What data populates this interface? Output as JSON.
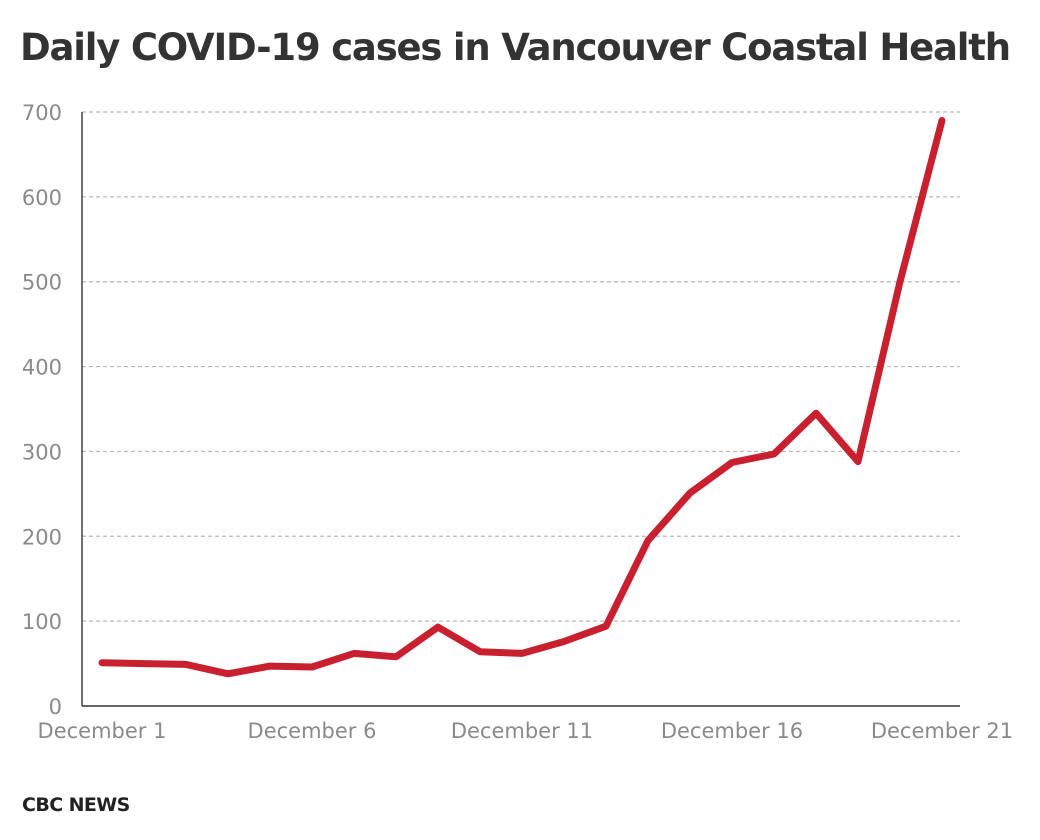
{
  "chart_data": {
    "type": "line",
    "title": "Daily COVID-19 cases in Vancouver Coastal Health",
    "xlabel": "",
    "ylabel": "",
    "ylim": [
      0,
      700
    ],
    "y_ticks": [
      0,
      100,
      200,
      300,
      400,
      500,
      600,
      700
    ],
    "y_tick_labels": [
      "0",
      "100",
      "200",
      "300",
      "400",
      "500",
      "600",
      "700"
    ],
    "x": [
      "December 1",
      "December 2",
      "December 3",
      "December 4",
      "December 5",
      "December 6",
      "December 7",
      "December 8",
      "December 9",
      "December 10",
      "December 11",
      "December 12",
      "December 13",
      "December 14",
      "December 15",
      "December 16",
      "December 17",
      "December 18",
      "December 19",
      "December 20",
      "December 21"
    ],
    "x_tick_labels": [
      "December 1",
      "December 6",
      "December 11",
      "December 16",
      "December 21"
    ],
    "series": [
      {
        "color": "#c8202f",
        "values": [
          51,
          50,
          49,
          38,
          47,
          46,
          62,
          58,
          93,
          64,
          62,
          76,
          94,
          195,
          251,
          287,
          297,
          345,
          288,
          500,
          690
        ]
      }
    ],
    "grid": true,
    "gridlines": "horizontal-dashed"
  },
  "source": "CBC NEWS"
}
